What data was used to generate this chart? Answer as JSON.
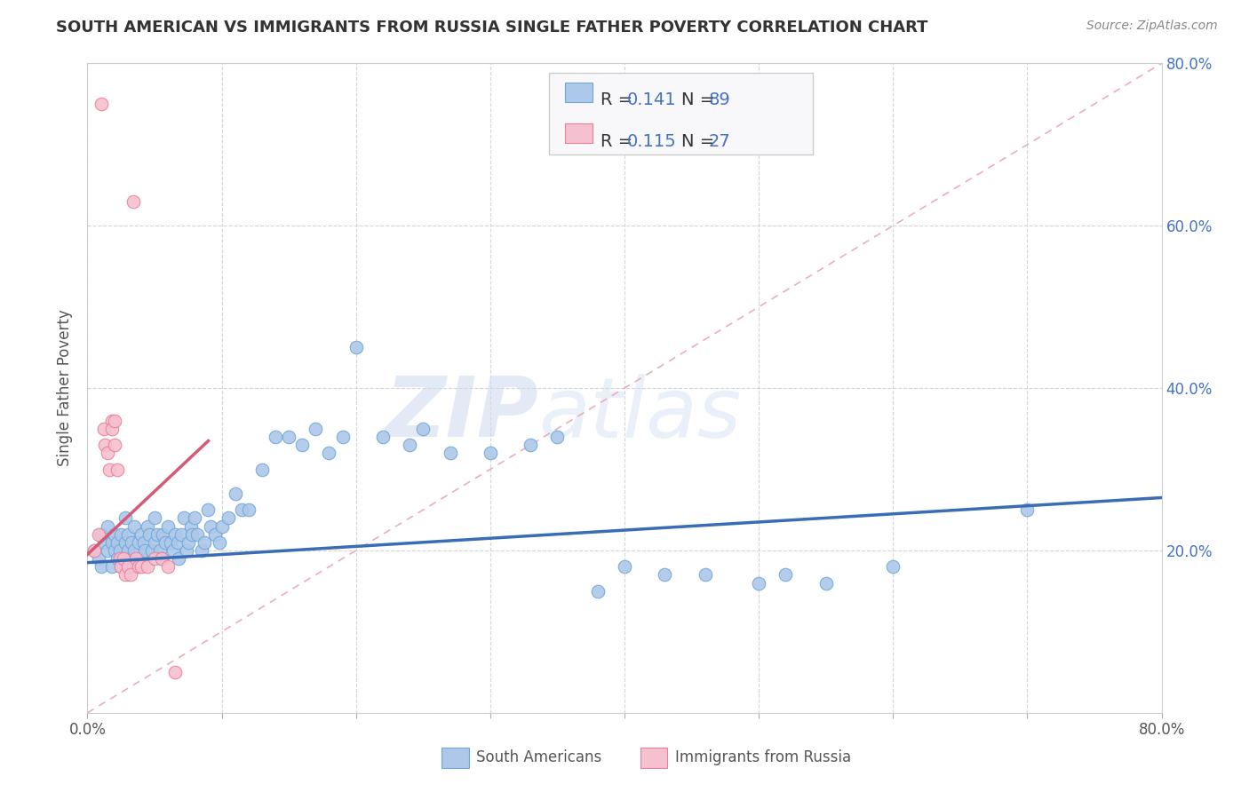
{
  "title": "SOUTH AMERICAN VS IMMIGRANTS FROM RUSSIA SINGLE FATHER POVERTY CORRELATION CHART",
  "source": "Source: ZipAtlas.com",
  "ylabel": "Single Father Poverty",
  "xlim": [
    0,
    0.8
  ],
  "ylim": [
    0,
    0.8
  ],
  "background_color": "#ffffff",
  "grid_color": "#cccccc",
  "blue_R": 0.141,
  "blue_N": 89,
  "pink_R": 0.115,
  "pink_N": 27,
  "blue_color": "#adc8e8",
  "blue_edge_color": "#6fa8d8",
  "blue_line_color": "#3a6db5",
  "pink_color": "#f5c0cf",
  "pink_edge_color": "#e8809a",
  "pink_line_color": "#d45a78",
  "diag_color": "#e8a0b0",
  "blue_scatter_x": [
    0.005,
    0.008,
    0.01,
    0.01,
    0.012,
    0.015,
    0.015,
    0.018,
    0.018,
    0.02,
    0.02,
    0.022,
    0.022,
    0.024,
    0.025,
    0.025,
    0.028,
    0.028,
    0.03,
    0.03,
    0.032,
    0.033,
    0.035,
    0.035,
    0.036,
    0.038,
    0.04,
    0.04,
    0.042,
    0.043,
    0.045,
    0.046,
    0.048,
    0.05,
    0.05,
    0.052,
    0.054,
    0.055,
    0.056,
    0.058,
    0.06,
    0.062,
    0.064,
    0.065,
    0.067,
    0.068,
    0.07,
    0.072,
    0.074,
    0.075,
    0.077,
    0.078,
    0.08,
    0.082,
    0.085,
    0.087,
    0.09,
    0.092,
    0.095,
    0.098,
    0.1,
    0.105,
    0.11,
    0.115,
    0.12,
    0.13,
    0.14,
    0.15,
    0.16,
    0.17,
    0.18,
    0.19,
    0.2,
    0.22,
    0.24,
    0.25,
    0.27,
    0.3,
    0.33,
    0.35,
    0.38,
    0.4,
    0.43,
    0.46,
    0.5,
    0.52,
    0.55,
    0.6,
    0.7
  ],
  "blue_scatter_y": [
    0.2,
    0.19,
    0.22,
    0.18,
    0.21,
    0.2,
    0.23,
    0.18,
    0.21,
    0.2,
    0.22,
    0.19,
    0.21,
    0.2,
    0.22,
    0.18,
    0.21,
    0.24,
    0.2,
    0.22,
    0.19,
    0.21,
    0.23,
    0.2,
    0.18,
    0.21,
    0.22,
    0.19,
    0.21,
    0.2,
    0.23,
    0.22,
    0.2,
    0.21,
    0.24,
    0.22,
    0.2,
    0.19,
    0.22,
    0.21,
    0.23,
    0.21,
    0.2,
    0.22,
    0.21,
    0.19,
    0.22,
    0.24,
    0.2,
    0.21,
    0.23,
    0.22,
    0.24,
    0.22,
    0.2,
    0.21,
    0.25,
    0.23,
    0.22,
    0.21,
    0.23,
    0.24,
    0.27,
    0.25,
    0.25,
    0.3,
    0.34,
    0.34,
    0.33,
    0.35,
    0.32,
    0.34,
    0.45,
    0.34,
    0.33,
    0.35,
    0.32,
    0.32,
    0.33,
    0.34,
    0.15,
    0.18,
    0.17,
    0.17,
    0.16,
    0.17,
    0.16,
    0.18,
    0.25
  ],
  "pink_scatter_x": [
    0.005,
    0.008,
    0.01,
    0.012,
    0.013,
    0.015,
    0.016,
    0.018,
    0.018,
    0.02,
    0.02,
    0.022,
    0.024,
    0.025,
    0.027,
    0.028,
    0.03,
    0.032,
    0.034,
    0.036,
    0.038,
    0.04,
    0.045,
    0.05,
    0.055,
    0.06,
    0.065
  ],
  "pink_scatter_y": [
    0.2,
    0.22,
    0.75,
    0.35,
    0.33,
    0.32,
    0.3,
    0.36,
    0.35,
    0.36,
    0.33,
    0.3,
    0.19,
    0.18,
    0.19,
    0.17,
    0.18,
    0.17,
    0.63,
    0.19,
    0.18,
    0.18,
    0.18,
    0.19,
    0.19,
    0.18,
    0.05
  ],
  "blue_line_x0": 0.0,
  "blue_line_y0": 0.185,
  "blue_line_x1": 0.8,
  "blue_line_y1": 0.265,
  "pink_line_x0": 0.0,
  "pink_line_y0": 0.195,
  "pink_line_x1": 0.09,
  "pink_line_y1": 0.335,
  "legend_R1": "0.141",
  "legend_N1": "89",
  "legend_R2": "0.115",
  "legend_N2": "27",
  "legend_label1": "South Americans",
  "legend_label2": "Immigrants from Russia",
  "watermark_zip": "ZIP",
  "watermark_atlas": "atlas"
}
